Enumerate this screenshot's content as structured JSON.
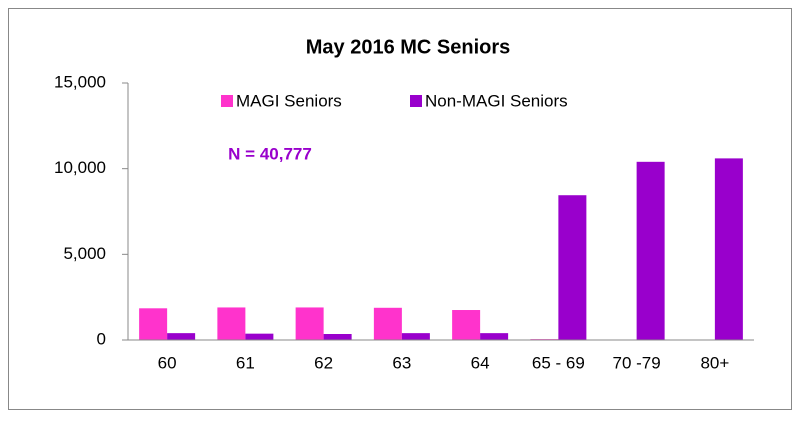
{
  "chart_data": {
    "type": "bar",
    "title": "May 2016 MC Seniors",
    "annotation": "N = 40,777",
    "categories": [
      "60",
      "61",
      "62",
      "63",
      "64",
      "65 - 69",
      "70 -79",
      "80+"
    ],
    "series": [
      {
        "name": "MAGI Seniors",
        "color": "#ff33cc",
        "values": [
          1850,
          1900,
          1900,
          1880,
          1750,
          50,
          0,
          0
        ]
      },
      {
        "name": "Non-MAGI Seniors",
        "color": "#9900cc",
        "values": [
          400,
          370,
          350,
          400,
          400,
          8450,
          10400,
          10600
        ]
      }
    ],
    "ylim": [
      0,
      15000
    ],
    "yticks": [
      0,
      {
        "value": 5000,
        "label": "5,000"
      },
      {
        "value": 10000,
        "label": "10,000"
      },
      {
        "value": 15000,
        "label": "15,000"
      }
    ],
    "grid": false,
    "legend": "top"
  }
}
